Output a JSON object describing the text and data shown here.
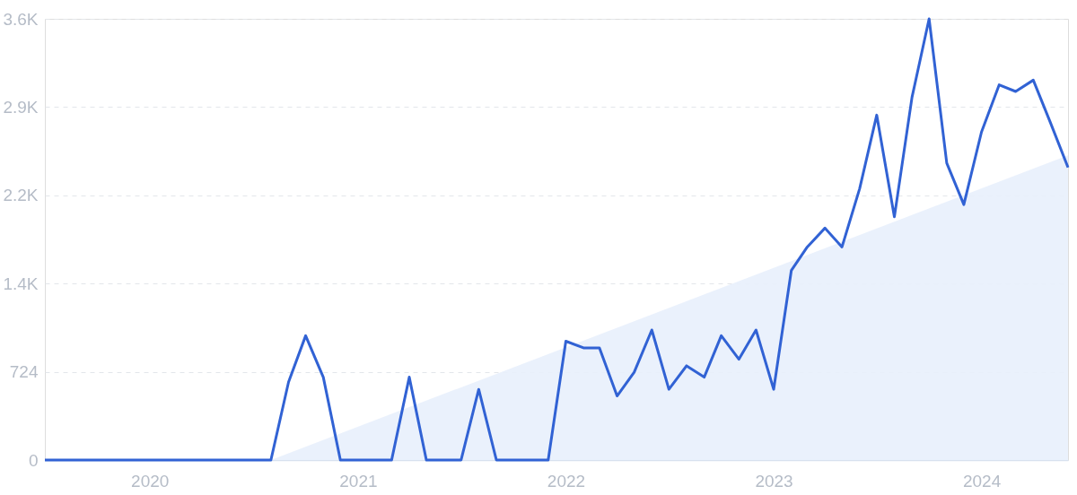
{
  "chart_data": {
    "type": "line",
    "x": [
      "2019-07",
      "2019-08",
      "2019-09",
      "2019-10",
      "2019-11",
      "2019-12",
      "2020-01",
      "2020-02",
      "2020-03",
      "2020-04",
      "2020-05",
      "2020-06",
      "2020-07",
      "2020-08",
      "2020-09",
      "2020-10",
      "2020-11",
      "2020-12",
      "2021-01",
      "2021-02",
      "2021-03",
      "2021-04",
      "2021-05",
      "2021-06",
      "2021-07",
      "2021-08",
      "2021-09",
      "2021-10",
      "2021-11",
      "2021-12",
      "2022-01",
      "2022-02",
      "2022-03",
      "2022-04",
      "2022-05",
      "2022-06",
      "2022-07",
      "2022-08",
      "2022-09",
      "2022-10",
      "2022-11",
      "2022-12",
      "2023-01",
      "2023-02",
      "2023-03",
      "2023-04",
      "2023-05",
      "2023-06",
      "2023-07",
      "2023-08",
      "2023-09",
      "2023-10",
      "2023-11",
      "2023-12",
      "2024-01",
      "2024-02",
      "2024-03",
      "2024-04",
      "2024-05",
      "2024-06"
    ],
    "series": [
      {
        "color": "#3162d4",
        "values": [
          0,
          0,
          0,
          0,
          0,
          0,
          0,
          0,
          0,
          0,
          0,
          0,
          0,
          0,
          640,
          1020,
          680,
          0,
          0,
          0,
          0,
          680,
          0,
          0,
          0,
          580,
          0,
          0,
          0,
          0,
          975,
          920,
          920,
          526,
          720,
          1067,
          580,
          773,
          680,
          1020,
          827,
          1067,
          580,
          1555,
          1748,
          1903,
          1748,
          2227,
          2830,
          1995,
          2977,
          3620,
          2436,
          2096,
          2691,
          3078,
          3024,
          3117,
          2769,
          2400
        ]
      },
      {
        "type": "area",
        "color": "#e8f0fc",
        "x": [
          "2020-08",
          "2024-06"
        ],
        "values": [
          0,
          2500
        ]
      }
    ],
    "xlim": [
      "2019-07",
      "2024-06"
    ],
    "xticks": [
      "2020",
      "2021",
      "2022",
      "2023",
      "2024"
    ],
    "ylim": [
      0,
      3620
    ],
    "yticks": [
      0,
      724,
      {
        "value": 1448,
        "label": "1.4K"
      },
      {
        "value": 2172,
        "label": "2.2K"
      },
      {
        "value": 2896,
        "label": "2.9K"
      },
      {
        "value": 3620,
        "label": "3.6K"
      }
    ],
    "grid": "y"
  }
}
